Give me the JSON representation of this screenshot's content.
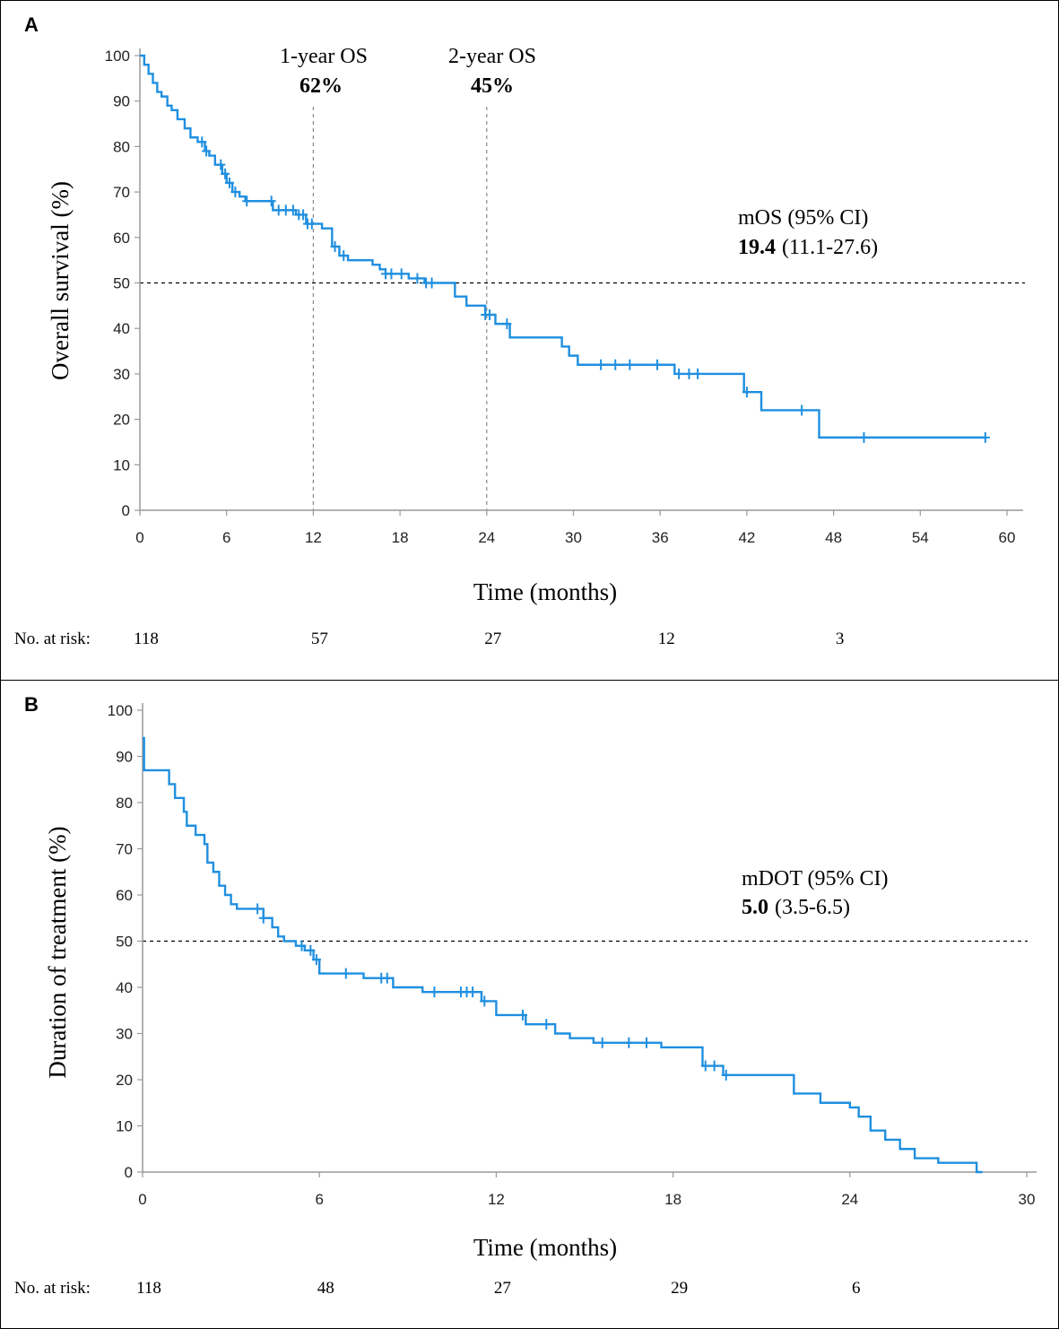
{
  "chart_data": [
    {
      "type": "line",
      "panel_label": "A",
      "xlabel": "Time (months)",
      "ylabel": "Overall survival (%)",
      "xlim": [
        0,
        60
      ],
      "ylim": [
        0,
        100
      ],
      "xticks": [
        0,
        6,
        12,
        18,
        24,
        30,
        36,
        42,
        48,
        54,
        60
      ],
      "yticks": [
        0,
        10,
        20,
        30,
        40,
        50,
        60,
        70,
        80,
        90,
        100
      ],
      "reference_line_y": 50,
      "vertical_lines_x": [
        12,
        24
      ],
      "line_color": "#1f8fe0",
      "annotations": {
        "year1_label": "1-year OS",
        "year1_value": "62%",
        "year2_label": "2-year OS",
        "year2_value": "45%",
        "median_label": "mOS (95% CI)",
        "median_value": "19.4",
        "median_ci": "(11.1-27.6)"
      },
      "risk_label": "No. at risk:",
      "risk_counts": [
        "118",
        "57",
        "27",
        "12",
        "3"
      ],
      "risk_times": [
        0,
        12,
        24,
        36,
        48
      ],
      "series": [
        {
          "name": "Overall survival",
          "x": [
            0,
            0.3,
            0.6,
            0.9,
            1.2,
            1.5,
            1.9,
            2.2,
            2.6,
            3.1,
            3.5,
            4.0,
            4.5,
            4.8,
            5.2,
            5.7,
            6.0,
            6.4,
            6.9,
            7.3,
            9.2,
            10.8,
            11.5,
            12.6,
            13.3,
            13.8,
            14.4,
            15.3,
            16.1,
            16.6,
            17.0,
            18.6,
            19.7,
            21.8,
            22.6,
            23.9,
            24.6,
            25.6,
            29.2,
            29.7,
            30.3,
            37.0,
            41.8,
            43.0,
            47.0,
            58.5
          ],
          "y": [
            100,
            98,
            96,
            94,
            92,
            91,
            89,
            88,
            86,
            84,
            82,
            81,
            79,
            78,
            76,
            74,
            72,
            70,
            69,
            68,
            66,
            65,
            63,
            62,
            58,
            56,
            55,
            55,
            54,
            53,
            52,
            51,
            50,
            47,
            45,
            43,
            41,
            38,
            36,
            34,
            32,
            30,
            26,
            22,
            16,
            16
          ]
        }
      ],
      "censor_x": [
        4.3,
        4.6,
        5.6,
        5.9,
        6.2,
        6.6,
        7.4,
        9.1,
        9.6,
        10.1,
        10.6,
        11.0,
        11.3,
        11.6,
        11.9,
        13.5,
        14.1,
        17.0,
        17.4,
        18.1,
        19.2,
        19.8,
        20.2,
        23.9,
        24.2,
        25.4,
        31.9,
        32.9,
        33.9,
        35.8,
        37.3,
        38.0,
        38.6,
        42.0,
        45.8,
        50.1,
        58.5
      ]
    },
    {
      "type": "line",
      "panel_label": "B",
      "xlabel": "Time (months)",
      "ylabel": "Duration of treatment (%)",
      "xlim": [
        0,
        30
      ],
      "ylim": [
        0,
        100
      ],
      "xticks": [
        0,
        6,
        12,
        18,
        24,
        30
      ],
      "yticks": [
        0,
        10,
        20,
        30,
        40,
        50,
        60,
        70,
        80,
        90,
        100
      ],
      "reference_line_y": 50,
      "line_color": "#1f8fe0",
      "annotations": {
        "median_label": "mDOT (95% CI)",
        "median_value": "5.0",
        "median_ci": "(3.5-6.5)"
      },
      "risk_label": "No. at risk:",
      "risk_counts": [
        "118",
        "48",
        "27",
        "29",
        "6"
      ],
      "risk_times": [
        0,
        6,
        12,
        18,
        24
      ],
      "series": [
        {
          "name": "Duration of treatment",
          "x": [
            0,
            0.05,
            0.7,
            0.9,
            1.1,
            1.4,
            1.5,
            1.8,
            2.1,
            2.2,
            2.4,
            2.6,
            2.8,
            3.0,
            3.2,
            4.1,
            4.4,
            4.6,
            4.8,
            5.2,
            5.5,
            5.8,
            6.0,
            7.5,
            8.5,
            9.5,
            11.5,
            12.0,
            13.0,
            14.0,
            14.5,
            15.3,
            17.6,
            19.0,
            19.7,
            22.1,
            23.0,
            24.0,
            24.3,
            24.7,
            25.2,
            25.7,
            26.2,
            27.0,
            28.3,
            28.5
          ],
          "y": [
            94,
            87,
            87,
            84,
            81,
            78,
            75,
            73,
            71,
            67,
            65,
            62,
            60,
            58,
            57,
            55,
            53,
            51,
            50,
            49,
            48,
            46,
            43,
            42,
            40,
            39,
            37,
            34,
            32,
            30,
            29,
            28,
            27,
            23,
            21,
            17,
            15,
            14,
            12,
            9,
            7,
            5,
            3,
            2,
            0,
            0
          ]
        }
      ],
      "censor_x": [
        3.9,
        4.1,
        5.4,
        5.7,
        5.9,
        6.9,
        8.1,
        8.3,
        9.9,
        10.8,
        11.0,
        11.2,
        11.6,
        12.9,
        13.7,
        15.6,
        16.5,
        17.1,
        19.1,
        19.4,
        19.8
      ]
    }
  ]
}
